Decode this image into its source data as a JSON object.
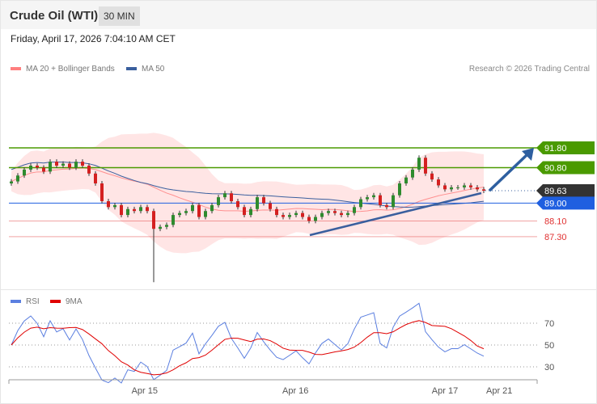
{
  "header": {
    "title": "Crude Oil (WTI)",
    "timeframe": "30 MIN",
    "datetime": "Friday, April 17, 2026 7:04:10 AM CET"
  },
  "legend": {
    "ma20": "MA 20 + Bollinger Bands",
    "ma50": "MA 50",
    "ma20_color": "#ff7f7f",
    "ma50_color": "#3a5f9e",
    "copyright": "Research © 2026 Trading Central"
  },
  "rsi_legend": {
    "rsi": "RSI",
    "ma": "9MA",
    "rsi_color": "#5b7fe0",
    "ma_color": "#e00000"
  },
  "chart_data": {
    "type": "candlestick",
    "closes": [
      90.1,
      90.4,
      90.7,
      90.9,
      90.8,
      90.6,
      91.1,
      90.9,
      91.0,
      90.8,
      91.1,
      90.9,
      90.5,
      90.0,
      89.1,
      88.8,
      88.9,
      88.4,
      88.7,
      88.6,
      88.8,
      88.6,
      87.7,
      87.8,
      87.9,
      88.4,
      88.5,
      88.6,
      88.9,
      88.3,
      88.6,
      88.9,
      89.3,
      89.5,
      89.1,
      88.8,
      88.4,
      88.7,
      89.3,
      89.0,
      88.7,
      88.4,
      88.3,
      88.4,
      88.5,
      88.3,
      88.1,
      88.3,
      88.5,
      88.6,
      88.5,
      88.4,
      88.5,
      88.8,
      89.2,
      89.3,
      89.4,
      88.9,
      88.8,
      89.4,
      90.0,
      90.3,
      90.7,
      91.3,
      90.5,
      90.2,
      89.9,
      89.7,
      89.8,
      89.8,
      89.9,
      89.8,
      89.7,
      89.63
    ],
    "spike_low": {
      "index": 22,
      "value": 85.0
    },
    "x_ticks": [
      {
        "label": "Apr 15",
        "index": 20.6
      },
      {
        "label": "Apr 16",
        "index": 43.9
      },
      {
        "label": "Apr 17",
        "index": 67
      },
      {
        "label": "Apr 21",
        "index": 75.4
      }
    ],
    "levels": [
      {
        "value": 91.8,
        "label": "91.80",
        "type": "resistance",
        "color": "#4a9a00"
      },
      {
        "value": 90.8,
        "label": "90.80",
        "type": "resistance",
        "color": "#4a9a00"
      },
      {
        "value": 89.63,
        "label": "89.63",
        "type": "last",
        "color": "#333333"
      },
      {
        "value": 89.0,
        "label": "89.00",
        "type": "pivot",
        "color": "#1f5fe0"
      },
      {
        "value": 88.1,
        "label": "88.10",
        "type": "support",
        "color": "#e03030"
      },
      {
        "value": 87.3,
        "label": "87.30",
        "type": "support",
        "color": "#e03030"
      }
    ],
    "rsi_levels": [
      {
        "value": 70,
        "label": "70"
      },
      {
        "value": 50,
        "label": "50"
      },
      {
        "value": 30,
        "label": "30"
      }
    ],
    "up_color": "#2e8b2e",
    "down_color": "#d42020"
  }
}
